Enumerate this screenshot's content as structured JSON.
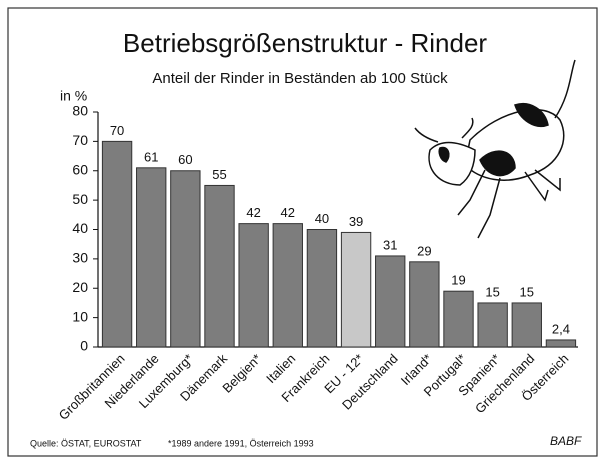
{
  "chart_data": {
    "type": "bar",
    "title": "Betriebsgrößenstruktur - Rinder",
    "subtitle": "Anteil der Rinder in Beständen ab 100 Stück",
    "y_label": "in %",
    "categories": [
      "Großbritannien",
      "Niederlande",
      "Luxemburg*",
      "Dänemark",
      "Belgien*",
      "Italien",
      "Frankreich",
      "EU - 12*",
      "Deutschland",
      "Irland*",
      "Portugal*",
      "Spanien*",
      "Griechenland",
      "Österreich"
    ],
    "values": [
      70,
      61,
      60,
      55,
      42,
      42,
      40,
      39,
      31,
      29,
      19,
      15,
      15,
      2.4
    ],
    "value_labels": [
      "70",
      "61",
      "60",
      "55",
      "42",
      "42",
      "40",
      "39",
      "31",
      "29",
      "19",
      "15",
      "15",
      "2,4"
    ],
    "colors": [
      "#7d7d7d",
      "#7d7d7d",
      "#7d7d7d",
      "#7d7d7d",
      "#7d7d7d",
      "#7d7d7d",
      "#7d7d7d",
      "#c8c8c8",
      "#7d7d7d",
      "#7d7d7d",
      "#7d7d7d",
      "#7d7d7d",
      "#7d7d7d",
      "#7d7d7d"
    ],
    "ylim": [
      0,
      80
    ],
    "yticks": [
      0,
      10,
      20,
      30,
      40,
      50,
      60,
      70,
      80
    ],
    "source": "Quelle: ÖSTAT, EUROSTAT",
    "note": "*1989 andere 1991, Österreich 1993",
    "credit": "BABF"
  }
}
